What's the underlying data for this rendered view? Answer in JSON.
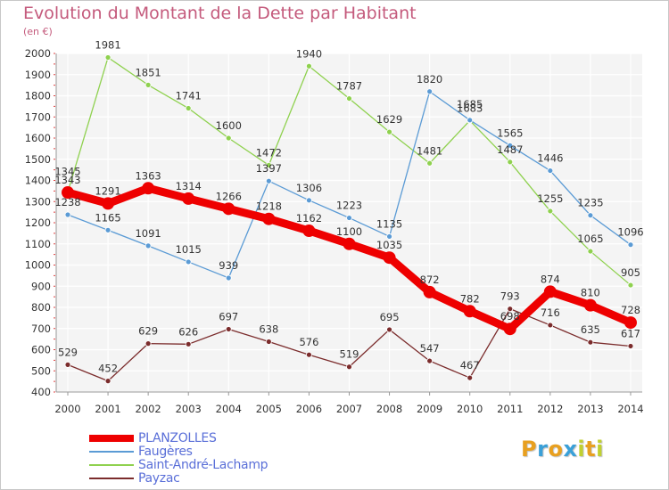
{
  "header": {
    "title": "Evolution du Montant de la Dette par Habitant",
    "unit": "(en €)"
  },
  "logo": {
    "letters": [
      "P",
      "r",
      "o",
      "x",
      "i",
      "t",
      "i"
    ],
    "colors": [
      "#e8a020",
      "#3aa0d8",
      "#e8a020",
      "#3aa0d8",
      "#c0d030",
      "#e8a020",
      "#c0d030"
    ]
  },
  "chart_data": {
    "type": "line",
    "title": "Evolution du Montant de la Dette par Habitant",
    "subtitle": "(en €)",
    "x": [
      "2000",
      "2001",
      "2002",
      "2003",
      "2004",
      "2005",
      "2006",
      "2007",
      "2008",
      "2009",
      "2010",
      "2011",
      "2012",
      "2013",
      "2014"
    ],
    "ylim": [
      400,
      2000
    ],
    "yticks": [
      400,
      500,
      600,
      700,
      800,
      900,
      1000,
      1100,
      1200,
      1300,
      1400,
      1500,
      1600,
      1700,
      1800,
      1900,
      2000
    ],
    "grid": true,
    "legend_position": "bottom-left",
    "series": [
      {
        "name": "PLANZOLLES",
        "color": "#ee0000",
        "values": [
          1343,
          1291,
          1363,
          1314,
          1266,
          1218,
          1162,
          1100,
          1035,
          872,
          782,
          698,
          874,
          810,
          728
        ]
      },
      {
        "name": "Faugères",
        "color": "#5b9bd5",
        "values": [
          1238,
          1165,
          1091,
          1015,
          939,
          1397,
          1306,
          1223,
          1135,
          1820,
          1685,
          1565,
          1446,
          1235,
          1096
        ]
      },
      {
        "name": "Saint-André-Lachamp",
        "color": "#8fd14f",
        "values": [
          1345,
          1981,
          1851,
          1741,
          1600,
          1472,
          1940,
          1787,
          1629,
          1481,
          1683,
          1487,
          1255,
          1065,
          905
        ]
      },
      {
        "name": "Payzac",
        "color": "#7b2c2c",
        "values": [
          529,
          452,
          629,
          626,
          697,
          638,
          576,
          519,
          695,
          547,
          467,
          793,
          716,
          635,
          617
        ]
      }
    ]
  }
}
